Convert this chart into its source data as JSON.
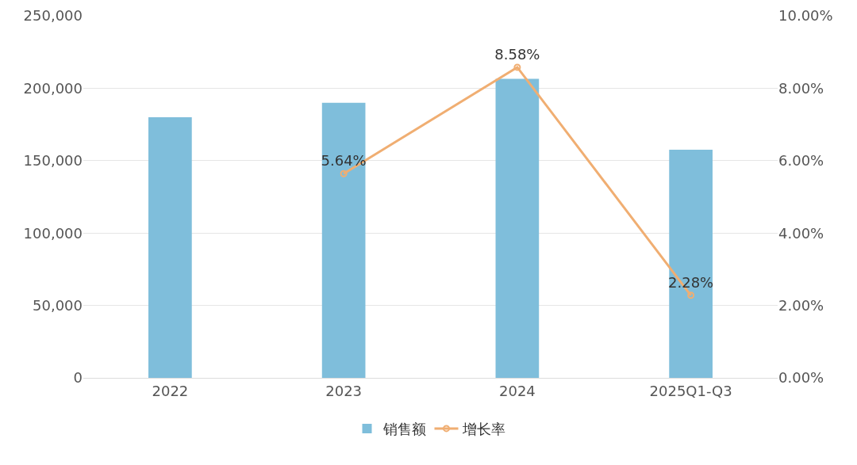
{
  "chart_data": {
    "type": "bar",
    "categories": [
      "2022",
      "2023",
      "2024",
      "2025Q1-Q3"
    ],
    "series": [
      {
        "name": "销售额",
        "color": "#7fbedb",
        "values": [
          180000,
          190000,
          206500,
          157500
        ]
      },
      {
        "name": "增长率",
        "type": "line",
        "axis": "y2",
        "color": "#f0ae72",
        "marker": "circle",
        "line_style": "solid",
        "values": [
          null,
          5.64,
          8.58,
          2.28
        ],
        "value_labels": [
          null,
          "5.64%",
          "8.58%",
          "2.28%"
        ]
      }
    ],
    "ylim": [
      0,
      250000
    ],
    "yticks": [
      {
        "value": 0,
        "label": "0"
      },
      {
        "value": 50000,
        "label": "50,000"
      },
      {
        "value": 100000,
        "label": "100,000"
      },
      {
        "value": 150000,
        "label": "150,000"
      },
      {
        "value": 200000,
        "label": "200,000"
      },
      {
        "value": 250000,
        "label": "250,000"
      }
    ],
    "y2lim": [
      0,
      10
    ],
    "y2ticks": [
      {
        "value": 0,
        "label": "0.00%"
      },
      {
        "value": 2,
        "label": "2.00%"
      },
      {
        "value": 4,
        "label": "4.00%"
      },
      {
        "value": 6,
        "label": "6.00%"
      },
      {
        "value": 8,
        "label": "8.00%"
      },
      {
        "value": 10,
        "label": "10.00%"
      }
    ],
    "grid": "y",
    "legend": "bottom"
  }
}
